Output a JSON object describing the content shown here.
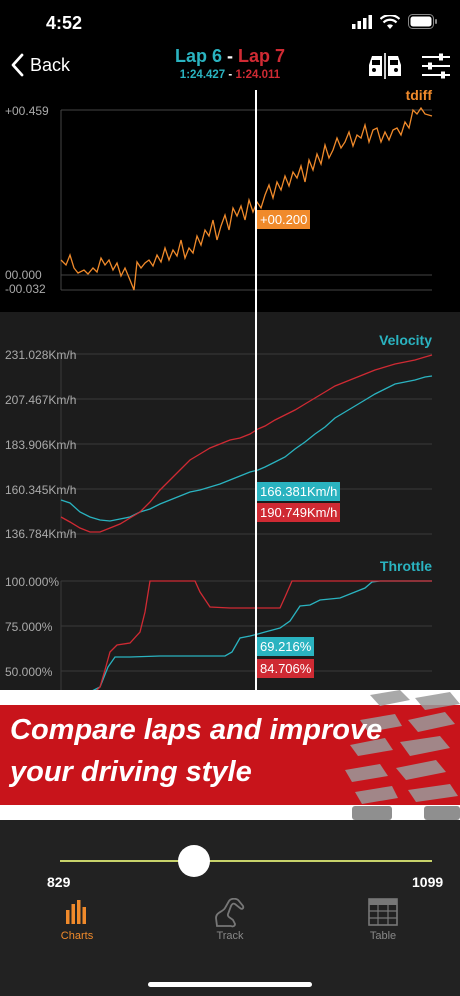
{
  "status": {
    "time": "4:52"
  },
  "nav": {
    "back_label": "Back",
    "lap_a": "Lap 6",
    "lap_sep": " - ",
    "lap_b": "Lap 7",
    "lap_a_time": "1:24.427",
    "lap_time_sep": " - ",
    "lap_b_time": "1:24.011"
  },
  "colors": {
    "lap_a": "#2ab3c0",
    "lap_b": "#cf2a33",
    "accent": "#f08a2b"
  },
  "tdiff": {
    "title": "tdiff",
    "y_labels": [
      "+00.459",
      "00.000",
      "-00.032"
    ],
    "cursor_value": "+00.200"
  },
  "velocity": {
    "title": "Velocity",
    "y_labels": [
      "231.028Km/h",
      "207.467Km/h",
      "183.906Km/h",
      "160.345Km/h",
      "136.784Km/h"
    ],
    "lap_a_value": "166.381Km/h",
    "lap_b_value": "190.749Km/h"
  },
  "throttle": {
    "title": "Throttle",
    "y_labels": [
      "100.000%",
      "75.000%",
      "50.000%"
    ],
    "lap_a_value": "69.216%",
    "lap_b_value": "84.706%"
  },
  "banner": {
    "line1": "Compare laps and improve",
    "line2": "your driving style"
  },
  "slider": {
    "min": "829",
    "max": "1099",
    "position": 0.36
  },
  "tabs": [
    {
      "label": "Charts",
      "icon": "bar-chart-icon",
      "active": true
    },
    {
      "label": "Track",
      "icon": "track-icon",
      "active": false
    },
    {
      "label": "Table",
      "icon": "table-icon",
      "active": false
    }
  ]
}
